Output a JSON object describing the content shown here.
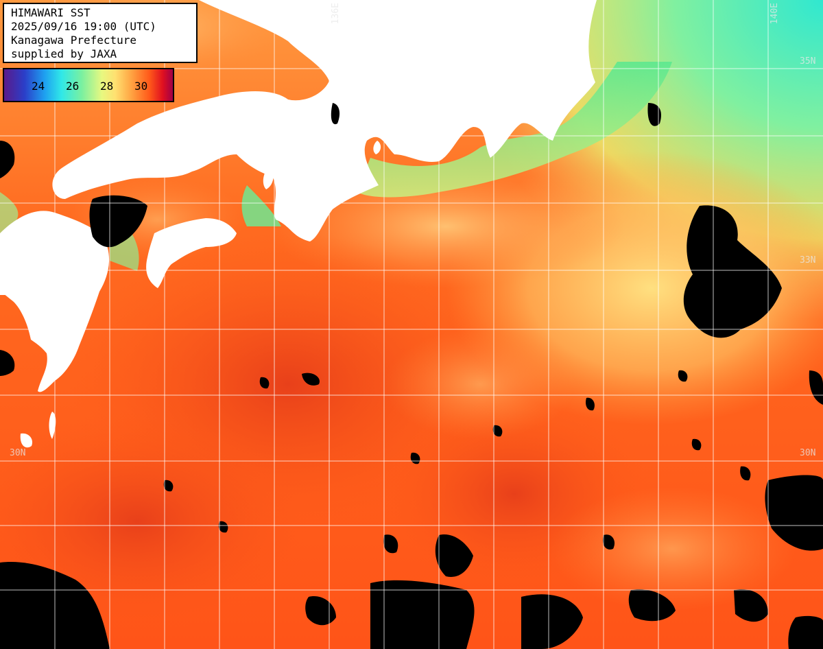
{
  "map": {
    "title": "HIMAWARI SST",
    "timestamp": "2025/09/16 19:00 (UTC)",
    "organization": "Kanagawa Prefecture",
    "credit": "supplied by JAXA"
  },
  "colorbar": {
    "ticks": [
      "24",
      "26",
      "28",
      "30"
    ],
    "colors": [
      "#5a1a8a",
      "#2b3ec8",
      "#1ea0f0",
      "#30e8e8",
      "#7af0a0",
      "#e8f880",
      "#ffe070",
      "#ffa040",
      "#ff5a1a",
      "#e01020",
      "#a00048"
    ]
  },
  "grid_labels": {
    "lon_136": "136E",
    "lon_140": "140E",
    "lat_35": "35N",
    "lat_33": "33N",
    "lat_30_left": "30N",
    "lat_30_right": "30N"
  },
  "colors": {
    "land": "#ffffff",
    "cloud_mask": "#000000",
    "grid": "#ffffff",
    "sst_warm": "#ff5a18",
    "sst_hot": "#e83a10",
    "sst_mid": "#ffb45a",
    "sst_cool": "#f0f070",
    "sst_coast": "#60ee90"
  }
}
